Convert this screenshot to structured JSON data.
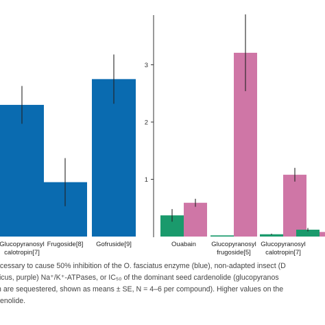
{
  "colors": {
    "blue": "#0a6bb0",
    "green": "#1a9a6c",
    "pink": "#cf76a6",
    "axis": "#333333",
    "error": "#222222"
  },
  "chart_data": [
    {
      "type": "bar",
      "categories": [
        "Glucopyranosyl calotropin[7]",
        "Frugoside[8]",
        "Gofruside[9]"
      ],
      "category_lines": [
        [
          "Glucopyranosyl",
          "calotropin[7]"
        ],
        [
          "Frugoside[8]"
        ],
        [
          "Gofruside[9]"
        ]
      ],
      "series": [
        {
          "values": [
            2.3,
            0.95,
            2.75
          ],
          "errors": [
            0.33,
            0.42,
            0.43
          ],
          "color": "blue"
        }
      ],
      "ylim": [
        0,
        3.8
      ],
      "grid": false
    },
    {
      "type": "bar",
      "categories": [
        "Ouabain",
        "Glucopyranosyl frugoside[5]",
        "Glucopyranosyl calotropin[7]",
        ""
      ],
      "category_lines": [
        [
          "Ouabain"
        ],
        [
          "Glucopyranosyl",
          "frugoside[5]"
        ],
        [
          "Glucopyranosyl",
          "calotropin[7]"
        ],
        []
      ],
      "series": [
        {
          "values": [
            0.37,
            0.02,
            0.04,
            0.12
          ],
          "errors": [
            0.11,
            0,
            0.01,
            0.03
          ],
          "color": "green"
        },
        {
          "values": [
            0.59,
            3.21,
            1.08,
            0.08
          ],
          "errors": [
            0.07,
            0.67,
            0.12,
            0.03
          ],
          "color": "pink"
        }
      ],
      "yticks": [
        1,
        2,
        3
      ],
      "ylim": [
        0,
        3.8
      ],
      "grid": false
    }
  ],
  "caption": [
    "ecessary to cause 50% inhibition of the O. fasciatus enzyme (blue), non-adapted insect (D",
    "ticus, purple) Na⁺/K⁺-ATPases, or IC₅₀ of the dominant seed cardenolide (glucopyranos",
    "h are sequestered, shown as means ± SE, N = 4–6 per compound). Higher values on the",
    "enolide."
  ]
}
